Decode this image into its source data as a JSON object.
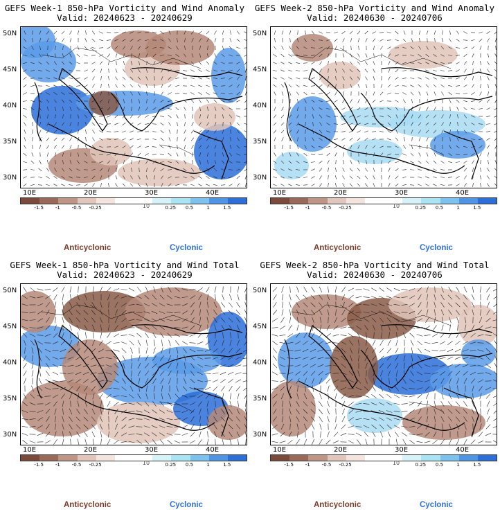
{
  "panels": [
    {
      "title": "GEFS Week-1 850-hPa Vorticity and Wind Anomaly",
      "valid": "Valid: 20240623 - 20240629",
      "lat_labels": [
        "50N",
        "45N",
        "40N",
        "35N",
        "30N"
      ],
      "lon_labels": [
        "10E",
        "20E",
        "30E",
        "40E"
      ],
      "legend_ticks": [
        "-1.5",
        "-1",
        "-0.5",
        "-0.25",
        "0.25",
        "0.5",
        "1",
        "1.5"
      ],
      "legend_center": "10",
      "anticyclonic": "Anticyclonic",
      "cyclonic": "Cyclonic"
    },
    {
      "title": "GEFS Week-2 850-hPa Vorticity and Wind Anomaly",
      "valid": "Valid: 20240630 - 20240706",
      "lat_labels": [
        "50N",
        "45N",
        "40N",
        "35N",
        "30N"
      ],
      "lon_labels": [
        "10E",
        "20E",
        "30E",
        "40E"
      ],
      "legend_ticks": [
        "-1.5",
        "-1",
        "-0.5",
        "-0.25",
        "0.25",
        "0.5",
        "1",
        "1.5"
      ],
      "legend_center": "10",
      "anticyclonic": "Anticyclonic",
      "cyclonic": "Cyclonic"
    },
    {
      "title": "GEFS Week-1 850-hPa Vorticity and Wind Total",
      "valid": "Valid: 20240623 - 20240629",
      "lat_labels": [
        "50N",
        "45N",
        "40N",
        "35N",
        "30N"
      ],
      "lon_labels": [
        "10E",
        "20E",
        "30E",
        "40E"
      ],
      "legend_ticks": [
        "-1.5",
        "-1",
        "-0.5",
        "-0.25",
        "0.25",
        "0.5",
        "1",
        "1.5"
      ],
      "legend_center": "10",
      "anticyclonic": "Anticyclonic",
      "cyclonic": "Cyclonic"
    },
    {
      "title": "GEFS Week-2 850-hPa Vorticity and Wind Total",
      "valid": "Valid: 20240630 - 20240706",
      "lat_labels": [
        "50N",
        "45N",
        "40N",
        "35N",
        "30N"
      ],
      "lon_labels": [
        "10E",
        "20E",
        "30E",
        "40E"
      ],
      "legend_ticks": [
        "-1.5",
        "-1",
        "-0.5",
        "-0.25",
        "0.25",
        "0.5",
        "1",
        "1.5"
      ],
      "legend_center": "10",
      "anticyclonic": "Anticyclonic",
      "cyclonic": "Cyclonic"
    }
  ],
  "colors": {
    "anticyclonic_text": "#7a3b2a",
    "cyclonic_text": "#2e6fdc",
    "scale": [
      "#7b4a3a",
      "#9a6a58",
      "#bf9686",
      "#e3c6bb",
      "#f3e4de",
      "#ffffff",
      "#ffffff",
      "#d6f3fa",
      "#a9e4f5",
      "#7cc2ef",
      "#4f95e6",
      "#2c6fd9"
    ]
  }
}
